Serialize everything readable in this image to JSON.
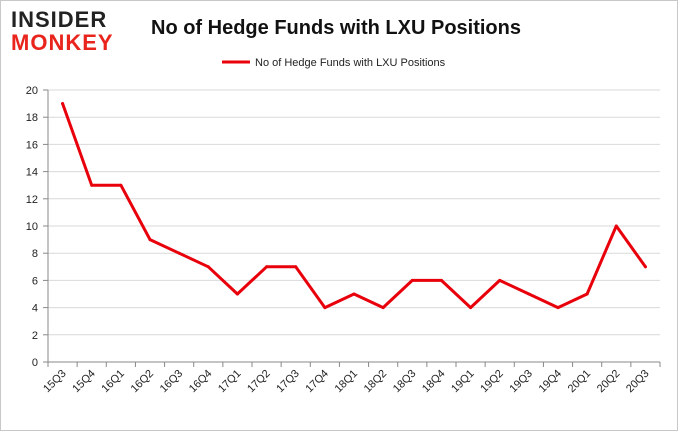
{
  "logo": {
    "top": "INSIDER",
    "bottom": "MONKEY"
  },
  "chart_data": {
    "type": "line",
    "title": "No of Hedge Funds with LXU Positions",
    "xlabel": "",
    "ylabel": "",
    "categories": [
      "15Q3",
      "15Q4",
      "16Q1",
      "16Q2",
      "16Q3",
      "16Q4",
      "17Q1",
      "17Q2",
      "17Q3",
      "17Q4",
      "18Q1",
      "18Q2",
      "18Q3",
      "18Q4",
      "19Q1",
      "19Q2",
      "19Q3",
      "19Q4",
      "20Q1",
      "20Q2",
      "20Q3"
    ],
    "series": [
      {
        "name": "No of Hedge Funds with LXU Positions",
        "color": "#e8000b",
        "values": [
          19,
          13,
          13,
          9,
          8,
          7,
          5,
          7,
          7,
          4,
          5,
          4,
          6,
          6,
          4,
          6,
          5,
          4,
          5,
          10,
          7
        ]
      }
    ],
    "ylim": [
      0,
      20
    ],
    "yticks": [
      0,
      2,
      4,
      6,
      8,
      10,
      12,
      14,
      16,
      18,
      20
    ],
    "grid": true,
    "legend": "top-center"
  }
}
